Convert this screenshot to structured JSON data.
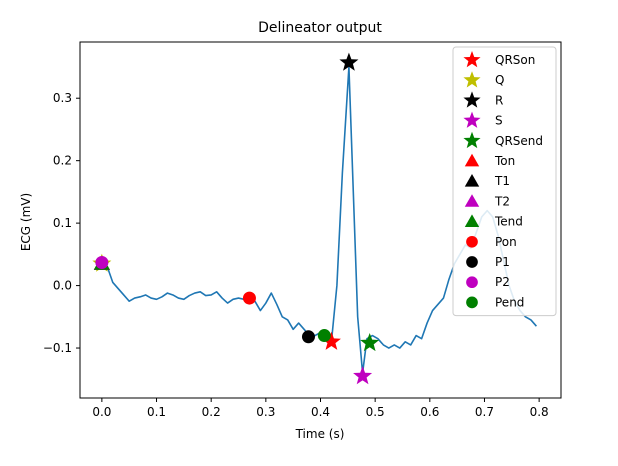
{
  "chart_data": {
    "type": "line",
    "title": "Delineator output",
    "xlabel": "Time (s)",
    "ylabel": "ECG (mV)",
    "xlim": [
      -0.04,
      0.84
    ],
    "ylim": [
      -0.18,
      0.39
    ],
    "xticks": [
      0.0,
      0.1,
      0.2,
      0.3,
      0.4,
      0.5,
      0.6,
      0.7,
      0.8
    ],
    "xtick_labels": [
      "0.0",
      "0.1",
      "0.2",
      "0.3",
      "0.4",
      "0.5",
      "0.6",
      "0.7",
      "0.8"
    ],
    "yticks": [
      -0.1,
      0.0,
      0.1,
      0.2,
      0.3
    ],
    "ytick_labels": [
      "−0.1",
      "0.0",
      "0.1",
      "0.2",
      "0.3"
    ],
    "grid": false,
    "legend_position": "top-right",
    "line_color": "#1f77b4",
    "series": [
      {
        "x": [
          0.0,
          0.01,
          0.02,
          0.03,
          0.04,
          0.05,
          0.06,
          0.07,
          0.08,
          0.09,
          0.1,
          0.11,
          0.12,
          0.13,
          0.14,
          0.15,
          0.16,
          0.17,
          0.18,
          0.19,
          0.2,
          0.21,
          0.22,
          0.23,
          0.24,
          0.25,
          0.26,
          0.27,
          0.28,
          0.29,
          0.3,
          0.31,
          0.32,
          0.33,
          0.34,
          0.35,
          0.36,
          0.37,
          0.38,
          0.39,
          0.4,
          0.41,
          0.42,
          0.43,
          0.44,
          0.452,
          0.46,
          0.468,
          0.477,
          0.485,
          0.495,
          0.505,
          0.515,
          0.525,
          0.535,
          0.545,
          0.555,
          0.565,
          0.575,
          0.585,
          0.595,
          0.605,
          0.615,
          0.625,
          0.635,
          0.645,
          0.655,
          0.665,
          0.675,
          0.685,
          0.695,
          0.705,
          0.715,
          0.725,
          0.735,
          0.745,
          0.755,
          0.765,
          0.775,
          0.785,
          0.795
        ],
        "y": [
          0.035,
          0.03,
          0.005,
          -0.005,
          -0.015,
          -0.025,
          -0.02,
          -0.018,
          -0.015,
          -0.02,
          -0.022,
          -0.018,
          -0.012,
          -0.015,
          -0.02,
          -0.022,
          -0.016,
          -0.012,
          -0.01,
          -0.016,
          -0.015,
          -0.01,
          -0.02,
          -0.028,
          -0.022,
          -0.02,
          -0.022,
          -0.02,
          -0.025,
          -0.04,
          -0.028,
          -0.012,
          -0.03,
          -0.05,
          -0.055,
          -0.07,
          -0.06,
          -0.07,
          -0.08,
          -0.08,
          -0.075,
          -0.08,
          -0.09,
          0.0,
          0.18,
          0.35,
          0.15,
          -0.05,
          -0.14,
          -0.085,
          -0.08,
          -0.085,
          -0.095,
          -0.1,
          -0.095,
          -0.1,
          -0.09,
          -0.095,
          -0.08,
          -0.085,
          -0.06,
          -0.04,
          -0.03,
          -0.02,
          0.01,
          0.035,
          0.05,
          0.065,
          0.06,
          0.085,
          0.11,
          0.12,
          0.11,
          0.08,
          0.04,
          0.0,
          -0.025,
          -0.04,
          -0.05,
          -0.055,
          -0.065
        ]
      }
    ],
    "markers": [
      {
        "name": "QRSon",
        "shape": "star",
        "color": "#ff0000",
        "x": 0.42,
        "y": -0.09
      },
      {
        "name": "Q",
        "shape": "star",
        "color": "#bfbf00",
        "x": 0.0,
        "y": 0.035
      },
      {
        "name": "R",
        "shape": "star",
        "color": "#000000",
        "x": 0.452,
        "y": 0.357
      },
      {
        "name": "S",
        "shape": "star",
        "color": "#bf00bf",
        "x": 0.477,
        "y": -0.145
      },
      {
        "name": "QRSend",
        "shape": "star",
        "color": "#008000",
        "x": 0.49,
        "y": -0.092
      },
      {
        "name": "Ton",
        "shape": "triangle",
        "color": "#ff0000",
        "x": 0.0,
        "y": 0.035
      },
      {
        "name": "T1",
        "shape": "triangle",
        "color": "#000000",
        "x": 0.0,
        "y": 0.035
      },
      {
        "name": "T2",
        "shape": "triangle",
        "color": "#bf00bf",
        "x": 0.0,
        "y": 0.035
      },
      {
        "name": "Tend",
        "shape": "triangle",
        "color": "#008000",
        "x": 0.0,
        "y": 0.035
      },
      {
        "name": "Pon",
        "shape": "circle",
        "color": "#ff0000",
        "x": 0.27,
        "y": -0.02
      },
      {
        "name": "P1",
        "shape": "circle",
        "color": "#000000",
        "x": 0.378,
        "y": -0.082
      },
      {
        "name": "P2",
        "shape": "circle",
        "color": "#bf00bf",
        "x": 0.0,
        "y": 0.037
      },
      {
        "name": "Pend",
        "shape": "circle",
        "color": "#008000",
        "x": 0.407,
        "y": -0.08
      }
    ],
    "legend": [
      {
        "label": "QRSon",
        "shape": "star",
        "color": "#ff0000"
      },
      {
        "label": "Q",
        "shape": "star",
        "color": "#bfbf00"
      },
      {
        "label": "R",
        "shape": "star",
        "color": "#000000"
      },
      {
        "label": "S",
        "shape": "star",
        "color": "#bf00bf"
      },
      {
        "label": "QRSend",
        "shape": "star",
        "color": "#008000"
      },
      {
        "label": "Ton",
        "shape": "triangle",
        "color": "#ff0000"
      },
      {
        "label": "T1",
        "shape": "triangle",
        "color": "#000000"
      },
      {
        "label": "T2",
        "shape": "triangle",
        "color": "#bf00bf"
      },
      {
        "label": "Tend",
        "shape": "triangle",
        "color": "#008000"
      },
      {
        "label": "Pon",
        "shape": "circle",
        "color": "#ff0000"
      },
      {
        "label": "P1",
        "shape": "circle",
        "color": "#000000"
      },
      {
        "label": "P2",
        "shape": "circle",
        "color": "#bf00bf"
      },
      {
        "label": "Pend",
        "shape": "circle",
        "color": "#008000"
      }
    ]
  }
}
